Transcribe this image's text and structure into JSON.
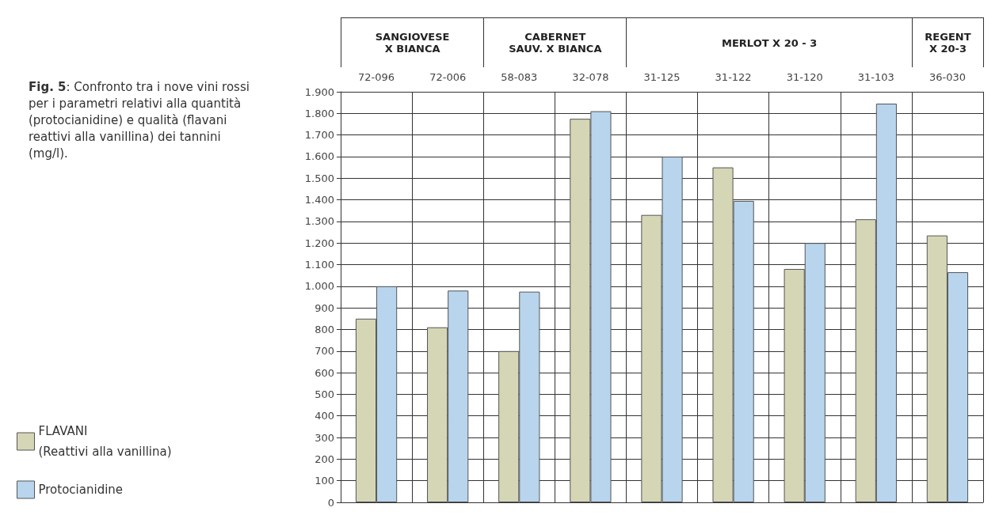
{
  "chart_data": {
    "type": "bar",
    "title": "Fig. 5: Confronto tra i nove vini rossi per i parametri relativi alla quantità (protocianidine) e qualità (flavani reattivi alla vanillina) dei tannini (mg/l).",
    "categories": [
      "72-096",
      "72-006",
      "58-083",
      "32-078",
      "31-125",
      "31-122",
      "31-120",
      "31-103",
      "36-030"
    ],
    "series": [
      {
        "name": "FLAVANI\n(Reattivi alla vanillina)",
        "color": "#d5d6b5",
        "values": [
          850,
          810,
          700,
          1775,
          1330,
          1550,
          1080,
          1310,
          1235
        ]
      },
      {
        "name": "Protocianidine",
        "color": "#b8d5ed",
        "values": [
          1000,
          980,
          975,
          1810,
          1600,
          1395,
          1200,
          1845,
          1065
        ]
      }
    ],
    "annotations": [
      "SANGIOVESE\nX BIANCA",
      "CABERNET\nSAUV. X BIANCA",
      "MERLOT X 20 - 3",
      "REGENT\nX 20-3"
    ],
    "ylim": [
      0,
      1900
    ],
    "yticks": [
      0,
      100,
      200,
      300,
      400,
      500,
      600,
      700,
      800,
      900,
      {
        "value": 1000,
        "label": "1.000"
      },
      {
        "value": 1100,
        "label": "1.100"
      },
      {
        "value": 1200,
        "label": "1.200"
      },
      {
        "value": 1300,
        "label": "1.300"
      },
      {
        "value": 1400,
        "label": "1.400"
      },
      {
        "value": 1500,
        "label": "1.500"
      },
      {
        "value": 1600,
        "label": "1.600"
      },
      {
        "value": 1700,
        "label": "1.700"
      },
      {
        "value": 1800,
        "label": "1.800"
      },
      {
        "value": 1900,
        "label": "1.900"
      }
    ],
    "grid": true,
    "legend": "bottom left"
  }
}
